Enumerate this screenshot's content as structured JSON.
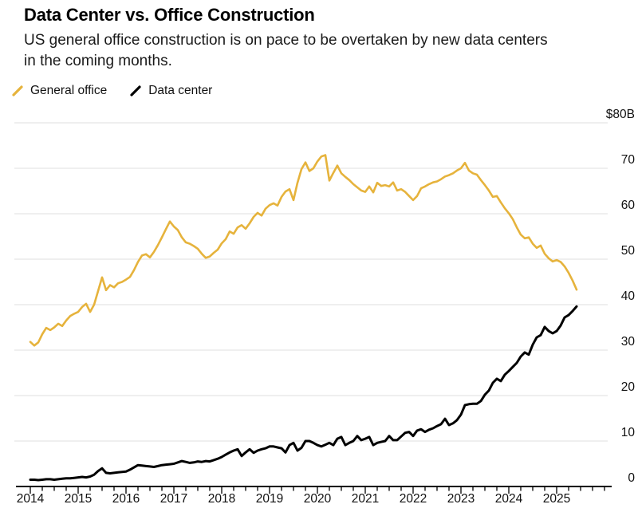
{
  "header": {
    "title": "Data Center vs. Office Construction",
    "subtitle": "US general office construction is on pace to be overtaken by new data centers in the coming months."
  },
  "legend": {
    "items": [
      {
        "label": "General office",
        "color": "#E6B33C"
      },
      {
        "label": "Data center",
        "color": "#000000"
      }
    ]
  },
  "colors": {
    "background": "#ffffff",
    "gridline": "#E5E5E5",
    "axis": "#000000",
    "tick_label": "#111111",
    "office_line": "#E6B33C",
    "datacenter_line": "#000000"
  },
  "chart_data": {
    "type": "line",
    "title": "Data Center vs. Office Construction",
    "subtitle": "US general office construction is on pace to be overtaken by new data centers in the coming months.",
    "unit": "US$ billions",
    "x_start_year": 2014,
    "x_interval": "monthly",
    "x_end": "2025-06",
    "xlim": [
      2014.0,
      2025.6
    ],
    "ylim": [
      0,
      80
    ],
    "grid": "horizontal",
    "legend_position": "top-left",
    "x_tick_labels": [
      "2014",
      "2015",
      "2016",
      "2017",
      "2018",
      "2019",
      "2020",
      "2021",
      "2022",
      "2023",
      "2024",
      "2025"
    ],
    "y_ticks": [
      {
        "value": 80,
        "label": "$80B"
      },
      {
        "value": 70,
        "label": "70"
      },
      {
        "value": 60,
        "label": "60"
      },
      {
        "value": 50,
        "label": "50"
      },
      {
        "value": 40,
        "label": "40"
      },
      {
        "value": 30,
        "label": "30"
      },
      {
        "value": 20,
        "label": "20"
      },
      {
        "value": 10,
        "label": "10"
      },
      {
        "value": 0,
        "label": "0"
      }
    ],
    "series": [
      {
        "name": "General office",
        "color": "#E6B33C",
        "values": [
          31.8,
          31.0,
          31.7,
          33.5,
          34.9,
          34.4,
          35.0,
          35.8,
          35.3,
          36.5,
          37.5,
          38.0,
          38.4,
          39.5,
          40.2,
          38.4,
          40.0,
          43.0,
          46.0,
          43.2,
          44.3,
          43.8,
          44.7,
          45.0,
          45.5,
          46.1,
          47.6,
          49.4,
          50.8,
          51.1,
          50.4,
          51.6,
          53.1,
          54.8,
          56.6,
          58.3,
          57.2,
          56.4,
          54.8,
          53.7,
          53.4,
          52.9,
          52.3,
          51.2,
          50.3,
          50.6,
          51.4,
          52.1,
          53.5,
          54.4,
          56.1,
          55.6,
          57.0,
          57.5,
          56.7,
          57.9,
          59.3,
          60.2,
          59.6,
          61.1,
          61.9,
          62.3,
          61.8,
          63.7,
          64.9,
          65.4,
          63.0,
          66.8,
          69.8,
          71.3,
          69.4,
          70.0,
          71.5,
          72.6,
          72.9,
          67.3,
          69.0,
          70.6,
          68.9,
          68.1,
          67.4,
          66.5,
          65.8,
          65.1,
          64.8,
          66.0,
          64.7,
          66.8,
          66.1,
          66.3,
          66.0,
          66.9,
          65.1,
          65.4,
          64.8,
          63.9,
          63.0,
          63.9,
          65.6,
          66.0,
          66.5,
          66.9,
          67.1,
          67.6,
          68.2,
          68.5,
          68.9,
          69.5,
          70.0,
          71.2,
          69.5,
          68.9,
          68.6,
          67.4,
          66.3,
          65.1,
          63.7,
          63.9,
          62.5,
          61.2,
          60.1,
          58.8,
          57.0,
          55.4,
          54.6,
          54.8,
          53.4,
          52.5,
          53.0,
          51.2,
          50.2,
          49.5,
          49.8,
          49.4,
          48.4,
          47.0,
          45.3,
          43.3
        ]
      },
      {
        "name": "Data center",
        "color": "#000000",
        "values": [
          1.5,
          1.5,
          1.4,
          1.5,
          1.6,
          1.6,
          1.5,
          1.6,
          1.7,
          1.8,
          1.8,
          1.9,
          2.0,
          2.1,
          2.0,
          2.2,
          2.6,
          3.4,
          4.0,
          3.0,
          2.9,
          3.0,
          3.1,
          3.2,
          3.3,
          3.7,
          4.2,
          4.7,
          4.6,
          4.5,
          4.4,
          4.3,
          4.5,
          4.7,
          4.8,
          4.9,
          5.0,
          5.3,
          5.6,
          5.4,
          5.2,
          5.3,
          5.5,
          5.4,
          5.6,
          5.5,
          5.8,
          6.1,
          6.5,
          7.0,
          7.5,
          7.9,
          8.2,
          6.7,
          7.5,
          8.2,
          7.4,
          7.9,
          8.2,
          8.4,
          8.8,
          8.8,
          8.6,
          8.4,
          7.5,
          9.1,
          9.6,
          7.9,
          8.5,
          10.0,
          10.0,
          9.6,
          9.1,
          8.8,
          9.2,
          9.6,
          9.1,
          10.5,
          10.9,
          9.1,
          9.6,
          10.0,
          11.1,
          10.2,
          10.5,
          10.9,
          9.1,
          9.6,
          9.8,
          10.0,
          11.1,
          10.2,
          10.2,
          11.0,
          11.8,
          12.0,
          11.1,
          12.3,
          12.6,
          12.0,
          12.5,
          12.8,
          13.3,
          13.7,
          14.9,
          13.5,
          13.9,
          14.6,
          15.8,
          17.9,
          18.1,
          18.2,
          18.2,
          18.8,
          20.2,
          21.1,
          22.8,
          23.7,
          23.2,
          24.6,
          25.4,
          26.3,
          27.2,
          28.6,
          29.5,
          29.0,
          31.2,
          32.8,
          33.3,
          35.1,
          34.2,
          33.7,
          34.2,
          35.4,
          37.2,
          37.7,
          38.6,
          39.6
        ]
      }
    ]
  }
}
